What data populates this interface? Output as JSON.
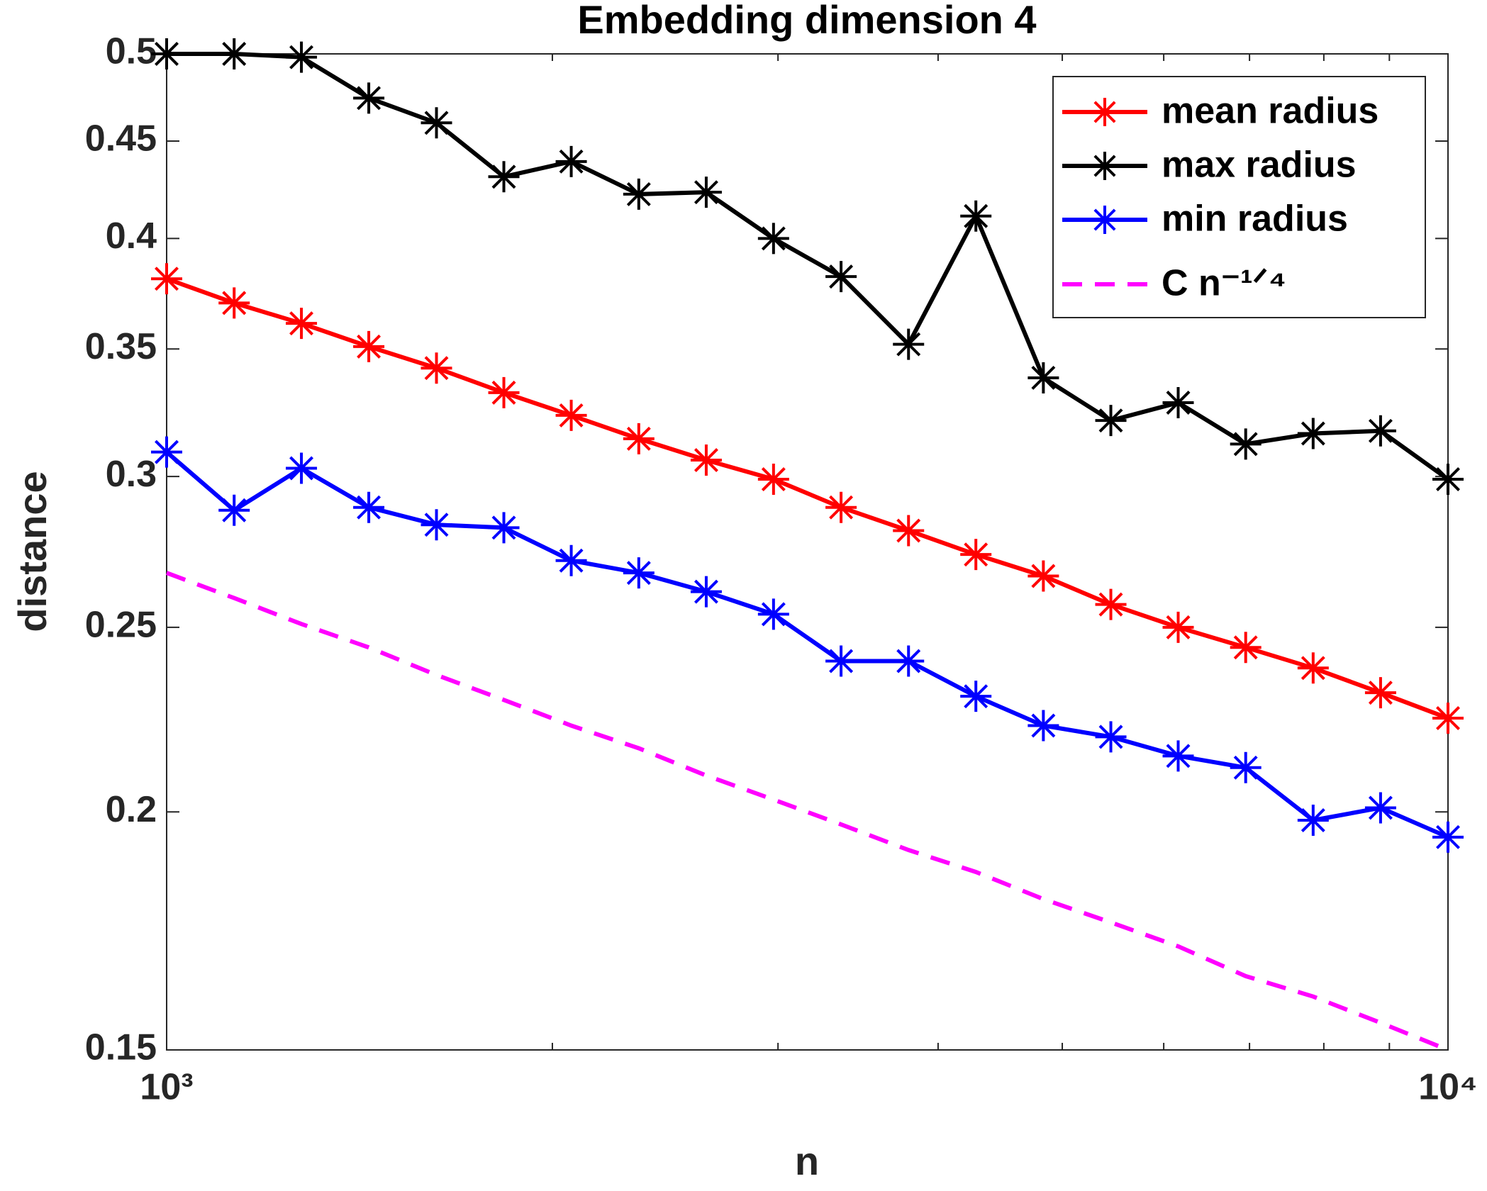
{
  "chart_data": {
    "type": "line",
    "title": "Embedding dimension 4",
    "xlabel": "n",
    "ylabel": "distance",
    "xscale": "log",
    "yscale": "log",
    "xlim": [
      1000,
      10000
    ],
    "ylim": [
      0.15,
      0.5
    ],
    "xticks": [
      {
        "value": 1000,
        "label": "10³"
      },
      {
        "value": 10000,
        "label": "10⁴"
      }
    ],
    "xminorticks": [
      2000,
      3000,
      4000,
      5000,
      6000,
      7000,
      8000,
      9000
    ],
    "yticks": [
      0.15,
      0.2,
      0.25,
      0.3,
      0.35,
      0.4,
      0.45,
      0.5
    ],
    "legend": "top-right",
    "x": [
      1000,
      1129,
      1274,
      1438,
      1624,
      1833,
      2069,
      2336,
      2637,
      2976,
      3360,
      3793,
      4281,
      4833,
      5456,
      6158,
      6952,
      7848,
      8859,
      10000
    ],
    "series": [
      {
        "name": "mean radius",
        "color": "#ff0000",
        "marker": "asterisk",
        "dashed": false,
        "values": [
          0.381,
          0.37,
          0.361,
          0.351,
          0.342,
          0.332,
          0.323,
          0.314,
          0.306,
          0.299,
          0.289,
          0.281,
          0.273,
          0.266,
          0.257,
          0.25,
          0.244,
          0.238,
          0.231,
          0.224
        ]
      },
      {
        "name": "max radius",
        "color": "#000000",
        "marker": "asterisk",
        "dashed": false,
        "values": [
          0.5,
          0.5,
          0.498,
          0.474,
          0.46,
          0.431,
          0.439,
          0.422,
          0.423,
          0.4,
          0.382,
          0.352,
          0.411,
          0.338,
          0.321,
          0.328,
          0.312,
          0.316,
          0.317,
          0.299
        ]
      },
      {
        "name": "min radius",
        "color": "#0000ff",
        "marker": "asterisk",
        "dashed": false,
        "values": [
          0.309,
          0.288,
          0.303,
          0.289,
          0.283,
          0.282,
          0.271,
          0.267,
          0.261,
          0.254,
          0.24,
          0.24,
          0.23,
          0.222,
          0.219,
          0.214,
          0.211,
          0.198,
          0.201,
          0.194
        ]
      },
      {
        "name": "C n⁻¹ᐟ⁴",
        "color": "#ff00ff",
        "marker": "none",
        "dashed": true,
        "values": [
          0.267,
          0.259,
          0.251,
          0.244,
          0.236,
          0.229,
          0.222,
          0.216,
          0.209,
          0.203,
          0.197,
          0.191,
          0.186,
          0.18,
          0.175,
          0.17,
          0.164,
          0.16,
          0.155,
          0.15
        ]
      }
    ]
  }
}
